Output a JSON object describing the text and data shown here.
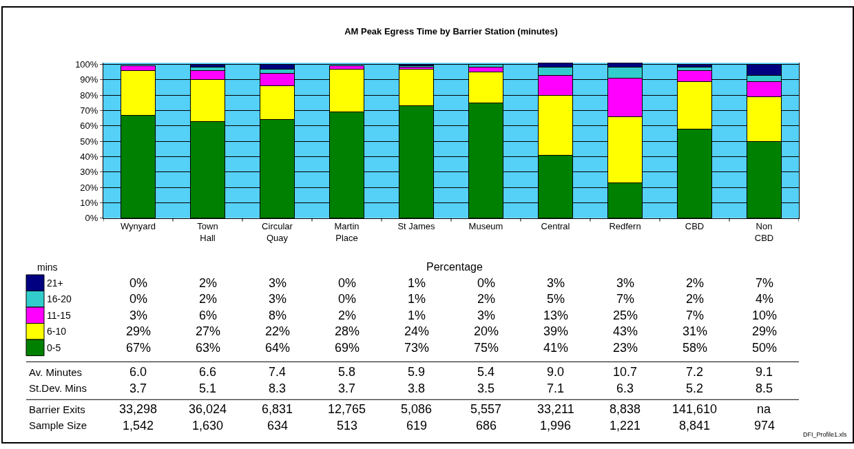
{
  "chart_data": {
    "type": "bar",
    "stacked": true,
    "title": "AM Peak Egress Time by Barrier Station (minutes)",
    "categories": [
      "Wynyard",
      "Town\nHall",
      "Circular\nQuay",
      "Martin\nPlace",
      "St James",
      "Museum",
      "Central",
      "Redfern",
      "CBD",
      "Non\nCBD"
    ],
    "series": [
      {
        "name": "0-5",
        "color": "#008000",
        "values": [
          67,
          63,
          64,
          69,
          73,
          75,
          41,
          23,
          58,
          50
        ],
        "value_labels": [
          "67%",
          "63%",
          "64%",
          "69%",
          "73%",
          "75%",
          "41%",
          "23%",
          "58%",
          "50%"
        ]
      },
      {
        "name": "6-10",
        "color": "#ffff00",
        "values": [
          29,
          27,
          22,
          28,
          24,
          20,
          39,
          43,
          31,
          29
        ],
        "value_labels": [
          "29%",
          "27%",
          "22%",
          "28%",
          "24%",
          "20%",
          "39%",
          "43%",
          "31%",
          "29%"
        ]
      },
      {
        "name": "11-15",
        "color": "#ff00ff",
        "values": [
          3,
          6,
          8,
          2,
          1,
          3,
          13,
          25,
          7,
          10
        ],
        "value_labels": [
          "3%",
          "6%",
          "8%",
          "2%",
          "1%",
          "3%",
          "13%",
          "25%",
          "7%",
          "10%"
        ]
      },
      {
        "name": "16-20",
        "color": "#33cccc",
        "values": [
          0,
          2,
          3,
          0,
          1,
          2,
          5,
          7,
          2,
          4
        ],
        "value_labels": [
          "0%",
          "2%",
          "3%",
          "0%",
          "1%",
          "2%",
          "5%",
          "7%",
          "2%",
          "4%"
        ]
      },
      {
        "name": "21+",
        "color": "#000080",
        "values": [
          0,
          2,
          3,
          0,
          1,
          0,
          3,
          3,
          2,
          7
        ],
        "value_labels": [
          "0%",
          "2%",
          "3%",
          "0%",
          "1%",
          "0%",
          "3%",
          "3%",
          "2%",
          "7%"
        ]
      }
    ],
    "ylim": [
      0,
      101
    ],
    "yticks": [
      {
        "value": 0,
        "label": "0%"
      },
      {
        "value": 10,
        "label": "10%"
      },
      {
        "value": 20,
        "label": "20%"
      },
      {
        "value": 30,
        "label": "30%"
      },
      {
        "value": 40,
        "label": "40%"
      },
      {
        "value": 50,
        "label": "50%"
      },
      {
        "value": 60,
        "label": "60%"
      },
      {
        "value": 70,
        "label": "70%"
      },
      {
        "value": 80,
        "label": "80%"
      },
      {
        "value": 90,
        "label": "90%"
      },
      {
        "value": 100,
        "label": "100%"
      }
    ],
    "grid": "y",
    "legend": "bottom left",
    "legend_title": "mins",
    "annotations": [
      "Percentage",
      "Av. Minutes",
      "6.0",
      "6.6",
      "7.4",
      "5.8",
      "5.9",
      "5.4",
      "9.0",
      "10.7",
      "7.2",
      "9.1",
      "St.Dev. Mins",
      "3.7",
      "5.1",
      "8.3",
      "3.7",
      "3.8",
      "3.5",
      "7.1",
      "6.3",
      "5.2",
      "8.5",
      "Barrier Exits",
      "33,298",
      "36,024",
      "6,831",
      "12,765",
      "5,086",
      "5,557",
      "33,211",
      "8,838",
      "141,610",
      "na",
      "Sample Size",
      "1,542",
      "1,630",
      "634",
      "513",
      "619",
      "686",
      "1,996",
      "1,221",
      "8,841",
      "974",
      "DFI_Profile1.xls"
    ]
  }
}
